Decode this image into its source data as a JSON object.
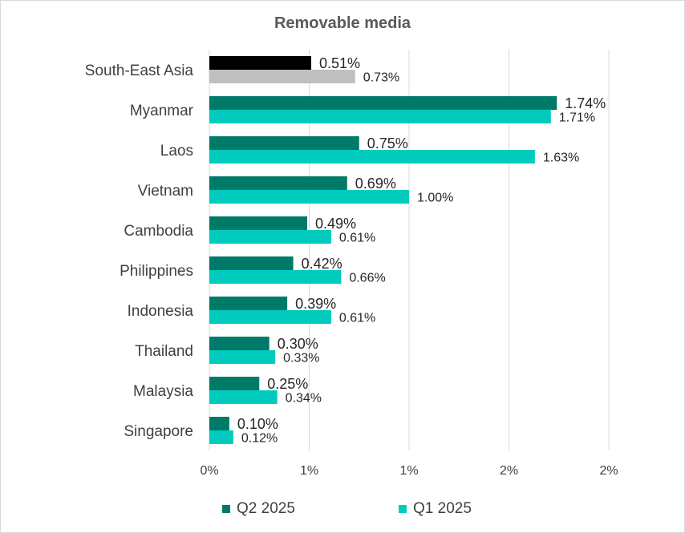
{
  "chart_data": {
    "type": "bar",
    "orientation": "horizontal",
    "title": "Removable media",
    "categories": [
      "South-East Asia",
      "Myanmar",
      "Laos",
      "Vietnam",
      "Cambodia",
      "Philippines",
      "Indonesia",
      "Thailand",
      "Malaysia",
      "Singapore"
    ],
    "series": [
      {
        "name": "Q2 2025",
        "values": [
          0.51,
          1.74,
          0.75,
          0.69,
          0.49,
          0.42,
          0.39,
          0.3,
          0.25,
          0.1
        ],
        "labels": [
          "0.51%",
          "1.74%",
          "0.75%",
          "0.69%",
          "0.49%",
          "0.42%",
          "0.39%",
          "0.30%",
          "0.25%",
          "0.10%"
        ],
        "color": "#007a68",
        "highlight_color": "#000000"
      },
      {
        "name": "Q1 2025",
        "values": [
          0.73,
          1.71,
          1.63,
          1.0,
          0.61,
          0.66,
          0.61,
          0.33,
          0.34,
          0.12
        ],
        "labels": [
          "0.73%",
          "1.71%",
          "1.63%",
          "1.00%",
          "0.61%",
          "0.66%",
          "0.61%",
          "0.33%",
          "0.34%",
          "0.12%"
        ],
        "color": "#00cbbd",
        "highlight_color": "#bfbfbf"
      }
    ],
    "highlight_category": "South-East Asia",
    "xlim": [
      0,
      2.0
    ],
    "x_ticks": [
      0,
      0.5,
      1.0,
      1.5,
      2.0
    ],
    "x_tick_labels": [
      "0%",
      "1%",
      "1%",
      "2%",
      "2%"
    ],
    "grid": "vertical",
    "legend": "bottom"
  }
}
